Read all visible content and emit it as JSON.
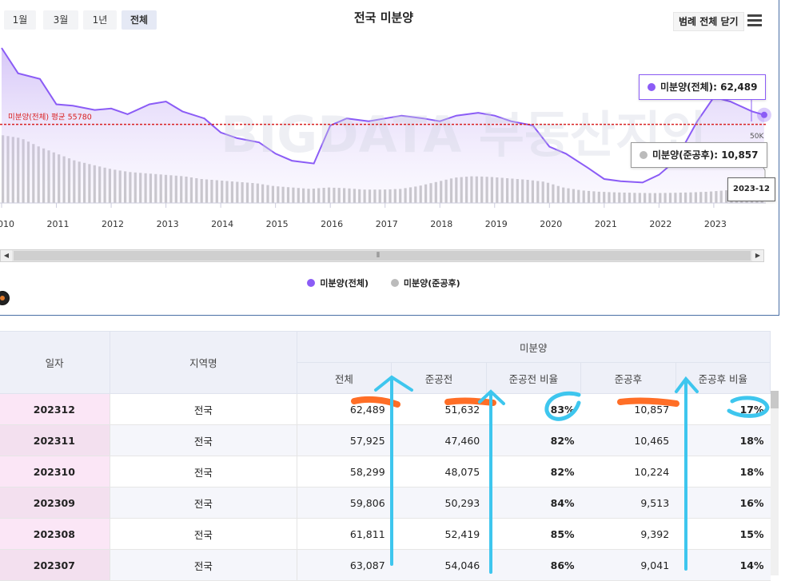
{
  "toolbar": {
    "ranges": [
      "1월",
      "3월",
      "1년",
      "전체"
    ],
    "active_range": "전체",
    "legend_toggle_label": "범례 전체 닫기"
  },
  "chart_data": {
    "type": "area",
    "title": "전국 미분양",
    "x_ticks": [
      "2010",
      "2011",
      "2012",
      "2013",
      "2014",
      "2015",
      "2016",
      "2017",
      "2018",
      "2019",
      "2020",
      "2021",
      "2022",
      "2023"
    ],
    "y_tick_label": "50K",
    "series": [
      {
        "name": "미분양(전체)",
        "color": "#8b5cf6",
        "type": "area-line",
        "x": [
          2010.0,
          2010.3,
          2010.7,
          2011.0,
          2011.3,
          2011.7,
          2012.0,
          2012.3,
          2012.7,
          2013.0,
          2013.3,
          2013.7,
          2014.0,
          2014.3,
          2014.7,
          2015.0,
          2015.3,
          2015.7,
          2016.0,
          2016.3,
          2016.7,
          2017.0,
          2017.3,
          2017.7,
          2018.0,
          2018.3,
          2018.7,
          2019.0,
          2019.3,
          2019.7,
          2020.0,
          2020.3,
          2020.7,
          2021.0,
          2021.3,
          2021.7,
          2022.0,
          2022.3,
          2022.7,
          2023.0,
          2023.3,
          2023.7,
          2023.92
        ],
        "values": [
          110000,
          92000,
          88000,
          70000,
          69000,
          66000,
          67000,
          63000,
          70000,
          72000,
          65000,
          60000,
          50000,
          46000,
          43000,
          35000,
          30000,
          28000,
          55000,
          60000,
          58000,
          60000,
          62000,
          60000,
          58000,
          62000,
          64000,
          62000,
          58000,
          55000,
          40000,
          35000,
          25000,
          17000,
          15500,
          14500,
          20000,
          30000,
          58000,
          75000,
          72000,
          65000,
          62489
        ]
      },
      {
        "name": "미분양(준공후)",
        "color": "#bbbbbb",
        "type": "bar",
        "values": [
          48000,
          46000,
          40000,
          35000,
          30000,
          27000,
          24000,
          22000,
          21000,
          20000,
          19000,
          17000,
          16000,
          15000,
          14000,
          12000,
          11000,
          10000,
          11000,
          10500,
          9500,
          9500,
          10000,
          12000,
          15000,
          18000,
          19000,
          18500,
          17500,
          16500,
          15000,
          11000,
          9000,
          8000,
          7500,
          7200,
          7000,
          7200,
          7500,
          8000,
          9000,
          10000,
          10857
        ]
      }
    ],
    "average_line": {
      "label": "미분양(전체) 평균 55780",
      "value": 55780,
      "color": "#d92121"
    },
    "tooltip_total": {
      "label": "미분양(전체)",
      "value": "62,489"
    },
    "tooltip_completed": {
      "label": "미분양(준공후)",
      "value": "10,857"
    },
    "tooltip_date": "2023-12",
    "legend": [
      {
        "name": "미분양(전체)",
        "color": "#8b5cf6"
      },
      {
        "name": "미분양(준공후)",
        "color": "#bbbbbb"
      }
    ],
    "watermark": "BIGDATA 부동산지인"
  },
  "table": {
    "group_header": "미분양",
    "headers": [
      "일자",
      "지역명",
      "전체",
      "준공전",
      "준공전 비율",
      "준공후",
      "준공후 비율"
    ],
    "rows": [
      [
        "202312",
        "전국",
        "62,489",
        "51,632",
        "83%",
        "10,857",
        "17%"
      ],
      [
        "202311",
        "전국",
        "57,925",
        "47,460",
        "82%",
        "10,465",
        "18%"
      ],
      [
        "202310",
        "전국",
        "58,299",
        "48,075",
        "82%",
        "10,224",
        "18%"
      ],
      [
        "202309",
        "전국",
        "59,806",
        "50,293",
        "84%",
        "9,513",
        "16%"
      ],
      [
        "202308",
        "전국",
        "61,811",
        "52,419",
        "85%",
        "9,392",
        "15%"
      ],
      [
        "202307",
        "전국",
        "63,087",
        "54,046",
        "86%",
        "9,041",
        "14%"
      ]
    ]
  }
}
